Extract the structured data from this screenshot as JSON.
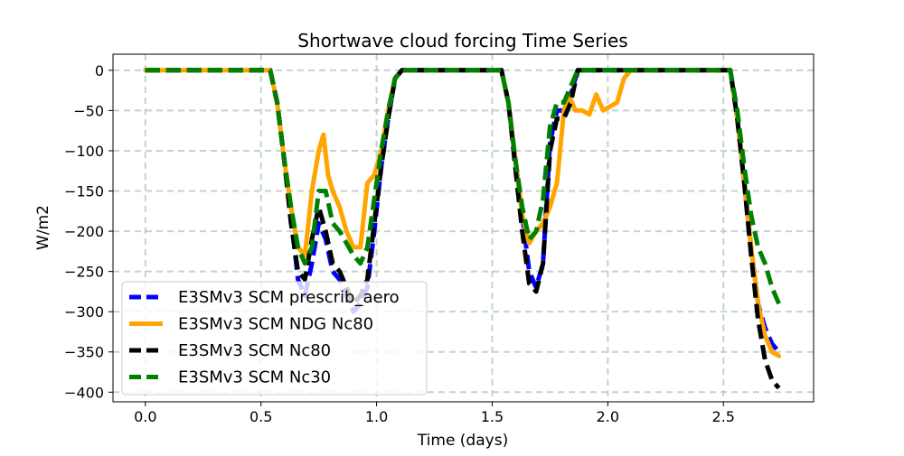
{
  "chart_data": {
    "type": "line",
    "title": "Shortwave cloud forcing Time Series",
    "xlabel": "Time (days)",
    "ylabel": "W/m2",
    "xlim": [
      -0.14,
      2.89
    ],
    "ylim": [
      -412,
      20
    ],
    "xticks": [
      0.0,
      0.5,
      1.0,
      1.5,
      2.0,
      2.5
    ],
    "xtick_labels": [
      "0.0",
      "0.5",
      "1.0",
      "1.5",
      "2.0",
      "2.5"
    ],
    "yticks": [
      0,
      -50,
      -100,
      -150,
      -200,
      -250,
      -300,
      -350,
      -400
    ],
    "ytick_labels": [
      "0",
      "−50",
      "−100",
      "−150",
      "−200",
      "−250",
      "−300",
      "−350",
      "−400"
    ],
    "grid": true,
    "legend_position": "lower-left",
    "series": [
      {
        "name": "E3SMv3 SCM prescrib_aero",
        "color": "#0000ff",
        "dash": "dashed",
        "x": [
          0,
          0.54,
          0.57,
          0.6,
          0.63,
          0.66,
          0.69,
          0.72,
          0.75,
          0.78,
          0.81,
          0.84,
          0.87,
          0.9,
          0.93,
          0.96,
          0.99,
          1.02,
          1.05,
          1.08,
          1.11,
          1.54,
          1.57,
          1.6,
          1.63,
          1.66,
          1.69,
          1.72,
          1.75,
          1.78,
          1.81,
          1.84,
          1.87,
          2.53,
          2.56,
          2.59,
          2.62,
          2.65,
          2.68,
          2.71,
          2.74
        ],
        "y": [
          0,
          0,
          -40,
          -110,
          -180,
          -260,
          -280,
          -240,
          -190,
          -210,
          -250,
          -260,
          -280,
          -300,
          -290,
          -270,
          -200,
          -120,
          -60,
          -10,
          0,
          0,
          -40,
          -110,
          -180,
          -250,
          -270,
          -240,
          -90,
          -50,
          -50,
          -30,
          0,
          0,
          -60,
          -140,
          -220,
          -290,
          -320,
          -340,
          -350
        ]
      },
      {
        "name": "E3SMv3 SCM NDG Nc80",
        "color": "#ffa500",
        "dash": "solid",
        "x": [
          0,
          0.54,
          0.57,
          0.6,
          0.63,
          0.66,
          0.69,
          0.72,
          0.75,
          0.77,
          0.79,
          0.81,
          0.84,
          0.87,
          0.9,
          0.93,
          0.96,
          0.99,
          1.02,
          1.05,
          1.08,
          1.11,
          1.54,
          1.57,
          1.6,
          1.63,
          1.66,
          1.69,
          1.72,
          1.75,
          1.78,
          1.81,
          1.83,
          1.86,
          1.89,
          1.92,
          1.95,
          1.98,
          2.01,
          2.04,
          2.07,
          2.1,
          2.13,
          2.53,
          2.56,
          2.59,
          2.62,
          2.65,
          2.68,
          2.71,
          2.74
        ],
        "y": [
          0,
          0,
          -40,
          -110,
          -170,
          -220,
          -230,
          -150,
          -100,
          -80,
          -130,
          -150,
          -170,
          -200,
          -220,
          -220,
          -140,
          -130,
          -100,
          -50,
          -10,
          0,
          0,
          -40,
          -110,
          -180,
          -215,
          -200,
          -190,
          -170,
          -140,
          -50,
          -30,
          -50,
          -50,
          -55,
          -30,
          -50,
          -45,
          -40,
          -10,
          0,
          0,
          0,
          -60,
          -140,
          -220,
          -290,
          -330,
          -350,
          -355
        ]
      },
      {
        "name": "E3SMv3 SCM Nc80",
        "color": "#000000",
        "dash": "dashed",
        "x": [
          0,
          0.54,
          0.57,
          0.6,
          0.63,
          0.66,
          0.69,
          0.72,
          0.75,
          0.78,
          0.81,
          0.84,
          0.87,
          0.9,
          0.93,
          0.96,
          0.99,
          1.02,
          1.05,
          1.08,
          1.11,
          1.54,
          1.57,
          1.6,
          1.63,
          1.66,
          1.69,
          1.72,
          1.75,
          1.78,
          1.81,
          1.84,
          1.87,
          2.53,
          2.56,
          2.59,
          2.62,
          2.65,
          2.68,
          2.71,
          2.74
        ],
        "y": [
          0,
          0,
          -40,
          -110,
          -190,
          -250,
          -260,
          -210,
          -170,
          -200,
          -240,
          -250,
          -270,
          -290,
          -280,
          -260,
          -190,
          -120,
          -60,
          -10,
          0,
          0,
          -40,
          -120,
          -200,
          -265,
          -275,
          -240,
          -100,
          -60,
          -60,
          -40,
          0,
          0,
          -60,
          -140,
          -230,
          -310,
          -360,
          -385,
          -395
        ]
      },
      {
        "name": "E3SMv3 SCM Nc30",
        "color": "#008000",
        "dash": "dashed",
        "x": [
          0,
          0.54,
          0.57,
          0.6,
          0.63,
          0.66,
          0.69,
          0.72,
          0.75,
          0.78,
          0.81,
          0.84,
          0.87,
          0.9,
          0.93,
          0.96,
          0.99,
          1.02,
          1.05,
          1.08,
          1.11,
          1.54,
          1.57,
          1.6,
          1.63,
          1.66,
          1.69,
          1.72,
          1.75,
          1.78,
          1.81,
          1.84,
          1.87,
          2.53,
          2.56,
          2.59,
          2.62,
          2.65,
          2.68,
          2.71,
          2.74
        ],
        "y": [
          0,
          0,
          -40,
          -110,
          -170,
          -220,
          -240,
          -220,
          -150,
          -150,
          -190,
          -200,
          -215,
          -230,
          -240,
          -220,
          -160,
          -100,
          -50,
          -10,
          0,
          0,
          -40,
          -110,
          -170,
          -210,
          -200,
          -160,
          -70,
          -40,
          -40,
          -20,
          0,
          0,
          -50,
          -120,
          -180,
          -220,
          -240,
          -270,
          -290
        ]
      }
    ]
  }
}
